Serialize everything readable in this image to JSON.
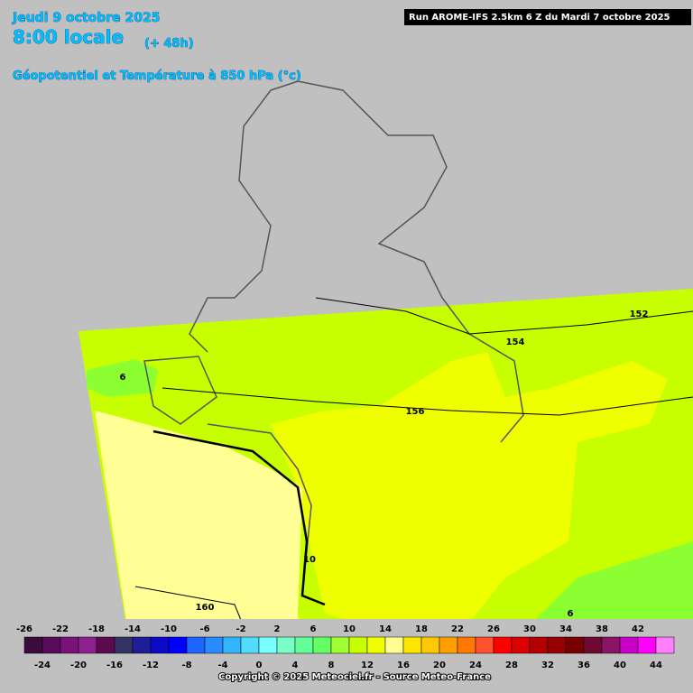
{
  "header": {
    "date": "Jeudi 9 octobre 2025",
    "time": "8:00 locale",
    "lead": "(+ 48h)",
    "product": "Géopotentiel et Température à 850 hPa (°c)",
    "run": "Run AROME-IFS 2.5km 6 Z du Mardi 7 octobre 2025"
  },
  "contour_labels": [
    6,
    152,
    154,
    156,
    10,
    160,
    6
  ],
  "colorbar": {
    "ticks": [
      -26,
      -24,
      -22,
      -20,
      -18,
      -16,
      -14,
      -12,
      -10,
      -8,
      -6,
      -4,
      -2,
      0,
      2,
      4,
      6,
      8,
      10,
      12,
      14,
      16,
      18,
      20,
      22,
      24,
      26,
      28,
      30,
      32,
      34,
      36,
      38,
      40,
      42,
      44
    ],
    "colors": [
      "#3c0a3c",
      "#5a0a5a",
      "#7a127a",
      "#8e208e",
      "#5c0a50",
      "#323264",
      "#1e1e96",
      "#0a0ac8",
      "#0000ff",
      "#1e64ff",
      "#288cff",
      "#32b4ff",
      "#50dcff",
      "#78ffff",
      "#78ffc8",
      "#64ff96",
      "#64ff64",
      "#a0ff32",
      "#c8ff00",
      "#f0ff00",
      "#ffff96",
      "#ffe600",
      "#ffc800",
      "#ffa000",
      "#ff7800",
      "#ff5030",
      "#ff0000",
      "#dc0000",
      "#b40000",
      "#960000",
      "#780000",
      "#6e0a32",
      "#8c1464",
      "#c800c8",
      "#ff00ff",
      "#ff80ff"
    ]
  },
  "footer": {
    "copyright": "Copyright © 2025 Meteociel.fr - Source Meteo-France"
  }
}
